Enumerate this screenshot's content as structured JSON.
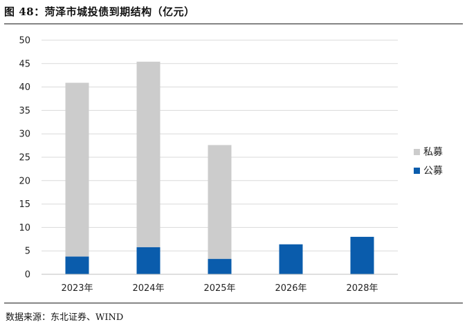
{
  "header": {
    "title": "图 48：菏泽市城投债到期结构（亿元）"
  },
  "footer": {
    "source": "数据来源：东北证券、WIND"
  },
  "colors": {
    "private": "#cccccc",
    "public": "#0a5cac",
    "grid": "#d9d9d9",
    "axis": "#bfbfbf"
  },
  "chart_data": {
    "type": "bar",
    "stacked": true,
    "categories": [
      "2023年",
      "2024年",
      "2025年",
      "2026年",
      "2028年"
    ],
    "series": [
      {
        "name": "公募",
        "values": [
          3.8,
          5.8,
          3.3,
          6.4,
          8.0
        ]
      },
      {
        "name": "私募",
        "values": [
          37.1,
          39.6,
          24.3,
          0,
          0
        ]
      }
    ],
    "ylim": [
      0,
      50
    ],
    "yticks": [
      0,
      5,
      10,
      15,
      20,
      25,
      30,
      35,
      40,
      45,
      50
    ],
    "grid": true,
    "legend": "right",
    "legend_order": [
      "私募",
      "公募"
    ],
    "xlabel": "",
    "ylabel": ""
  }
}
